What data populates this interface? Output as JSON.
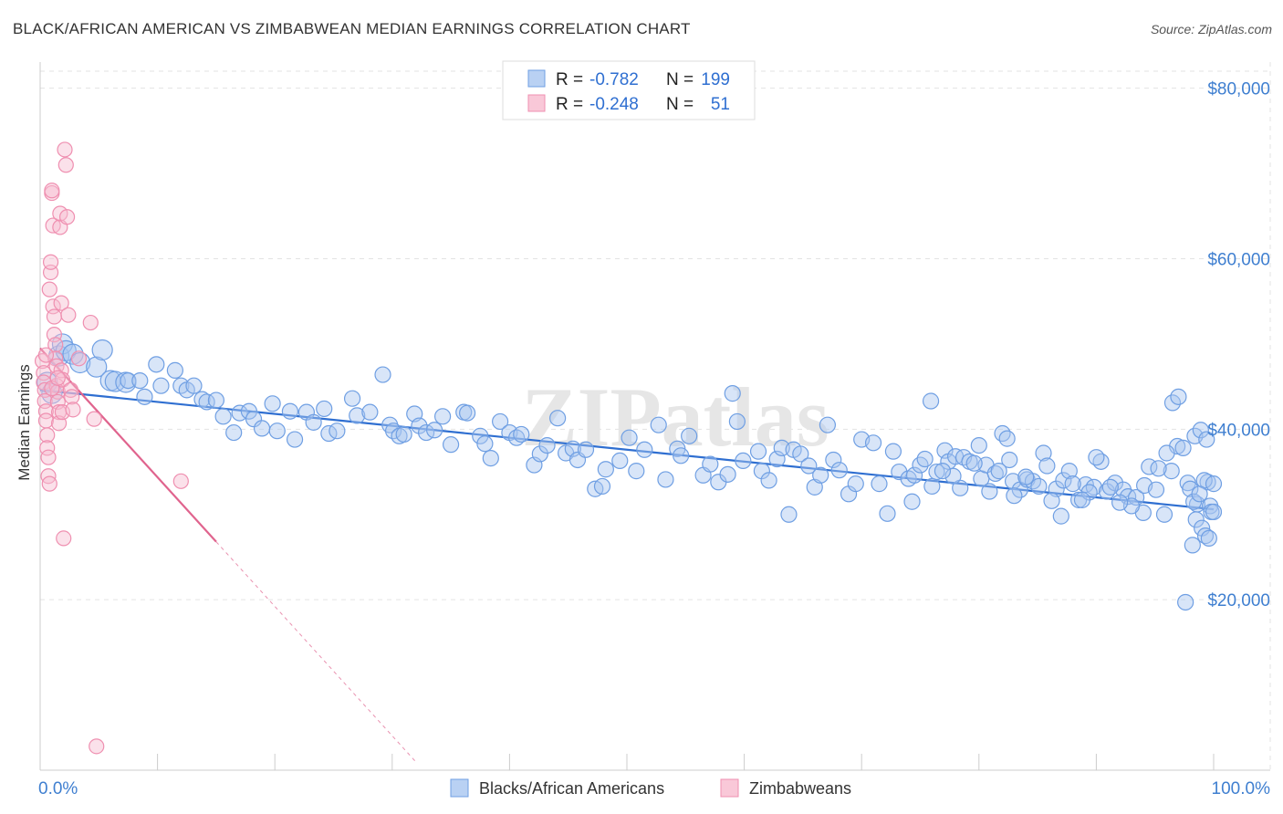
{
  "title": "BLACK/AFRICAN AMERICAN VS ZIMBABWEAN MEDIAN EARNINGS CORRELATION CHART",
  "source": "Source: ZipAtlas.com",
  "watermark": "ZIPatlas",
  "colors": {
    "blue": "#6f9fe3",
    "blue_fill": "#a9c6f0",
    "blue_line": "#2f6fd1",
    "pink": "#ef8fb0",
    "pink_fill": "#f6bcd0",
    "pink_line": "#e0648e",
    "axis_label_blue": "#3f7fd0"
  },
  "legend": {
    "rows": [
      {
        "r_label": "R =",
        "r_value": "-0.782",
        "n_label": "N =",
        "n_value": "199",
        "series": "blue"
      },
      {
        "r_label": "R =",
        "r_value": "-0.248",
        "n_label": "N =",
        "n_value": "51",
        "series": "pink"
      }
    ]
  },
  "chart_data": {
    "type": "scatter",
    "title": "BLACK/AFRICAN AMERICAN VS ZIMBABWEAN MEDIAN EARNINGS CORRELATION CHART",
    "xlabel": "",
    "ylabel": "Median Earnings",
    "xlim": [
      0,
      100
    ],
    "ylim": [
      0,
      82000
    ],
    "x_tick_labels": [
      "0.0%",
      "100.0%"
    ],
    "y_ticks": [
      20000,
      40000,
      60000,
      80000
    ],
    "y_tick_labels": [
      "$20,000",
      "$40,000",
      "$60,000",
      "$80,000"
    ],
    "grid": true,
    "legend_position": "bottom-center",
    "series": [
      {
        "name": "Blacks/African Americans",
        "color": "blue",
        "r": -0.782,
        "n": 199,
        "trend": {
          "x": [
            0,
            100
          ],
          "y": [
            44600,
            30600
          ],
          "style": "solid"
        },
        "points": [
          [
            0.6,
            45500
          ],
          [
            1.0,
            44200
          ],
          [
            1.6,
            48600
          ],
          [
            1.9,
            50000
          ],
          [
            2.2,
            49200
          ],
          [
            2.8,
            48800
          ],
          [
            3.4,
            47800
          ],
          [
            4.8,
            47300
          ],
          [
            5.3,
            49300
          ],
          [
            6.0,
            45700
          ],
          [
            6.4,
            45600
          ],
          [
            7.3,
            45500
          ],
          [
            7.5,
            45700
          ],
          [
            8.5,
            45700
          ],
          [
            8.9,
            43800
          ],
          [
            9.9,
            47600
          ],
          [
            10.3,
            45100
          ],
          [
            11.5,
            46900
          ],
          [
            12.0,
            45100
          ],
          [
            12.5,
            44600
          ],
          [
            13.1,
            45100
          ],
          [
            13.8,
            43500
          ],
          [
            14.2,
            43200
          ],
          [
            15.0,
            43400
          ],
          [
            15.6,
            41500
          ],
          [
            16.5,
            39600
          ],
          [
            17.0,
            41900
          ],
          [
            17.8,
            42100
          ],
          [
            18.2,
            41200
          ],
          [
            18.9,
            40100
          ],
          [
            19.8,
            43000
          ],
          [
            20.2,
            39800
          ],
          [
            21.3,
            42100
          ],
          [
            21.7,
            38800
          ],
          [
            22.7,
            42000
          ],
          [
            23.3,
            40800
          ],
          [
            24.2,
            42400
          ],
          [
            24.6,
            39500
          ],
          [
            25.3,
            39800
          ],
          [
            26.6,
            43600
          ],
          [
            27.0,
            41600
          ],
          [
            28.1,
            42000
          ],
          [
            29.2,
            46400
          ],
          [
            29.8,
            40500
          ],
          [
            30.1,
            39800
          ],
          [
            30.6,
            39200
          ],
          [
            31.0,
            39400
          ],
          [
            31.9,
            41800
          ],
          [
            32.3,
            40400
          ],
          [
            32.9,
            39600
          ],
          [
            33.6,
            39900
          ],
          [
            34.3,
            41500
          ],
          [
            35.0,
            38200
          ],
          [
            36.1,
            42000
          ],
          [
            36.4,
            41900
          ],
          [
            37.5,
            39200
          ],
          [
            37.9,
            38300
          ],
          [
            38.4,
            36600
          ],
          [
            39.2,
            40900
          ],
          [
            40.0,
            39600
          ],
          [
            40.6,
            39000
          ],
          [
            41.0,
            39400
          ],
          [
            42.1,
            35800
          ],
          [
            42.6,
            37100
          ],
          [
            43.2,
            38100
          ],
          [
            44.1,
            41300
          ],
          [
            44.8,
            37200
          ],
          [
            45.4,
            37700
          ],
          [
            45.8,
            36400
          ],
          [
            46.5,
            37600
          ],
          [
            47.3,
            33000
          ],
          [
            47.9,
            33300
          ],
          [
            48.2,
            35300
          ],
          [
            49.4,
            36300
          ],
          [
            50.2,
            39000
          ],
          [
            50.8,
            35100
          ],
          [
            51.5,
            37600
          ],
          [
            52.7,
            40500
          ],
          [
            53.3,
            34100
          ],
          [
            54.3,
            37700
          ],
          [
            54.6,
            36900
          ],
          [
            55.3,
            39200
          ],
          [
            56.5,
            34600
          ],
          [
            57.1,
            35900
          ],
          [
            57.8,
            33800
          ],
          [
            58.6,
            34700
          ],
          [
            59.0,
            44200
          ],
          [
            59.4,
            40900
          ],
          [
            59.9,
            36300
          ],
          [
            61.2,
            37400
          ],
          [
            61.5,
            35100
          ],
          [
            62.1,
            34000
          ],
          [
            62.8,
            36500
          ],
          [
            63.2,
            37800
          ],
          [
            63.8,
            30000
          ],
          [
            64.2,
            37600
          ],
          [
            64.8,
            37100
          ],
          [
            65.5,
            35700
          ],
          [
            66.0,
            33200
          ],
          [
            66.5,
            34600
          ],
          [
            67.1,
            40500
          ],
          [
            67.6,
            36400
          ],
          [
            68.1,
            35200
          ],
          [
            68.9,
            32400
          ],
          [
            69.5,
            33600
          ],
          [
            70.0,
            38800
          ],
          [
            71.0,
            38400
          ],
          [
            71.5,
            33600
          ],
          [
            72.2,
            30100
          ],
          [
            72.7,
            37400
          ],
          [
            73.2,
            35000
          ],
          [
            74.0,
            34200
          ],
          [
            74.5,
            34600
          ],
          [
            75.0,
            35800
          ],
          [
            75.9,
            43300
          ],
          [
            76.4,
            35000
          ],
          [
            77.1,
            37500
          ],
          [
            77.4,
            36200
          ],
          [
            78.0,
            36800
          ],
          [
            78.7,
            36700
          ],
          [
            79.2,
            36200
          ],
          [
            80.2,
            34200
          ],
          [
            80.6,
            35800
          ],
          [
            81.4,
            34800
          ],
          [
            82.0,
            39500
          ],
          [
            82.4,
            38900
          ],
          [
            82.9,
            33900
          ],
          [
            83.5,
            32900
          ],
          [
            84.1,
            34100
          ],
          [
            84.6,
            33900
          ],
          [
            85.5,
            37200
          ],
          [
            85.8,
            35700
          ],
          [
            86.6,
            33000
          ],
          [
            87.2,
            34000
          ],
          [
            87.7,
            35100
          ],
          [
            88.5,
            31700
          ],
          [
            89.1,
            33500
          ],
          [
            89.8,
            33200
          ],
          [
            90.4,
            36200
          ],
          [
            90.9,
            32700
          ],
          [
            91.6,
            33700
          ],
          [
            92.3,
            32900
          ],
          [
            92.7,
            32100
          ],
          [
            93.4,
            32000
          ],
          [
            94.1,
            33400
          ],
          [
            94.5,
            35600
          ],
          [
            95.1,
            32900
          ],
          [
            95.8,
            30000
          ],
          [
            96.4,
            35100
          ],
          [
            96.9,
            38000
          ],
          [
            97.4,
            37800
          ],
          [
            97.8,
            33700
          ],
          [
            98.4,
            39200
          ],
          [
            98.9,
            39900
          ],
          [
            99.4,
            38800
          ],
          [
            99.5,
            33800
          ],
          [
            98.6,
            31200
          ],
          [
            99.2,
            34000
          ],
          [
            100.0,
            33600
          ],
          [
            96.5,
            43100
          ],
          [
            97.0,
            43800
          ],
          [
            98.0,
            33000
          ],
          [
            98.3,
            31500
          ],
          [
            98.8,
            32400
          ],
          [
            99.7,
            31000
          ],
          [
            99.8,
            30300
          ],
          [
            98.5,
            29400
          ],
          [
            99.0,
            28400
          ],
          [
            99.3,
            27500
          ],
          [
            99.6,
            27200
          ],
          [
            100.0,
            30300
          ],
          [
            98.2,
            26400
          ],
          [
            97.6,
            19700
          ],
          [
            96.0,
            37200
          ],
          [
            95.3,
            35400
          ],
          [
            94.0,
            30200
          ],
          [
            93.0,
            31000
          ],
          [
            92.0,
            31400
          ],
          [
            91.2,
            33200
          ],
          [
            90.0,
            36700
          ],
          [
            89.4,
            32600
          ],
          [
            88.8,
            31700
          ],
          [
            88.0,
            33600
          ],
          [
            87.0,
            29800
          ],
          [
            86.2,
            31600
          ],
          [
            85.1,
            33300
          ],
          [
            84.0,
            34400
          ],
          [
            83.0,
            32200
          ],
          [
            82.6,
            36400
          ],
          [
            81.7,
            35100
          ],
          [
            80.9,
            32700
          ],
          [
            80.0,
            38100
          ],
          [
            79.6,
            36000
          ],
          [
            78.4,
            33100
          ],
          [
            77.8,
            34500
          ],
          [
            76.9,
            35100
          ],
          [
            76.0,
            33300
          ],
          [
            75.4,
            36500
          ],
          [
            74.3,
            31500
          ]
        ]
      },
      {
        "name": "Zimbabweans",
        "color": "pink",
        "r": -0.248,
        "n": 51,
        "trend": {
          "x": [
            0,
            15
          ],
          "y": [
            49500,
            26800
          ],
          "style": "solid"
        },
        "trend_extension": {
          "x": [
            15,
            32
          ],
          "y": [
            26800,
            1000
          ],
          "style": "dashed"
        },
        "points": [
          [
            0.2,
            48000
          ],
          [
            0.3,
            46600
          ],
          [
            0.3,
            45500
          ],
          [
            0.4,
            44600
          ],
          [
            0.4,
            43300
          ],
          [
            0.5,
            42100
          ],
          [
            0.5,
            41000
          ],
          [
            0.6,
            39300
          ],
          [
            0.6,
            37800
          ],
          [
            0.7,
            36700
          ],
          [
            0.7,
            34500
          ],
          [
            0.8,
            33600
          ],
          [
            0.8,
            56400
          ],
          [
            0.9,
            58400
          ],
          [
            0.9,
            59600
          ],
          [
            1.0,
            67700
          ],
          [
            1.0,
            68000
          ],
          [
            1.1,
            63900
          ],
          [
            1.1,
            54400
          ],
          [
            1.2,
            53200
          ],
          [
            1.2,
            51100
          ],
          [
            1.3,
            49900
          ],
          [
            1.3,
            48300
          ],
          [
            1.4,
            47400
          ],
          [
            1.4,
            45100
          ],
          [
            1.5,
            44400
          ],
          [
            1.5,
            43200
          ],
          [
            1.6,
            42000
          ],
          [
            1.6,
            40700
          ],
          [
            1.7,
            63700
          ],
          [
            1.7,
            65300
          ],
          [
            1.8,
            54800
          ],
          [
            1.8,
            46900
          ],
          [
            1.9,
            45800
          ],
          [
            1.9,
            42000
          ],
          [
            2.0,
            27200
          ],
          [
            2.1,
            72800
          ],
          [
            2.2,
            71000
          ],
          [
            2.3,
            64900
          ],
          [
            2.4,
            53400
          ],
          [
            2.6,
            44600
          ],
          [
            2.7,
            43800
          ],
          [
            2.8,
            42300
          ],
          [
            3.3,
            48300
          ],
          [
            4.3,
            52500
          ],
          [
            4.6,
            41200
          ],
          [
            12.0,
            33900
          ],
          [
            4.8,
            2800
          ],
          [
            1.0,
            44800
          ],
          [
            0.5,
            48700
          ],
          [
            1.5,
            46000
          ]
        ]
      }
    ]
  }
}
